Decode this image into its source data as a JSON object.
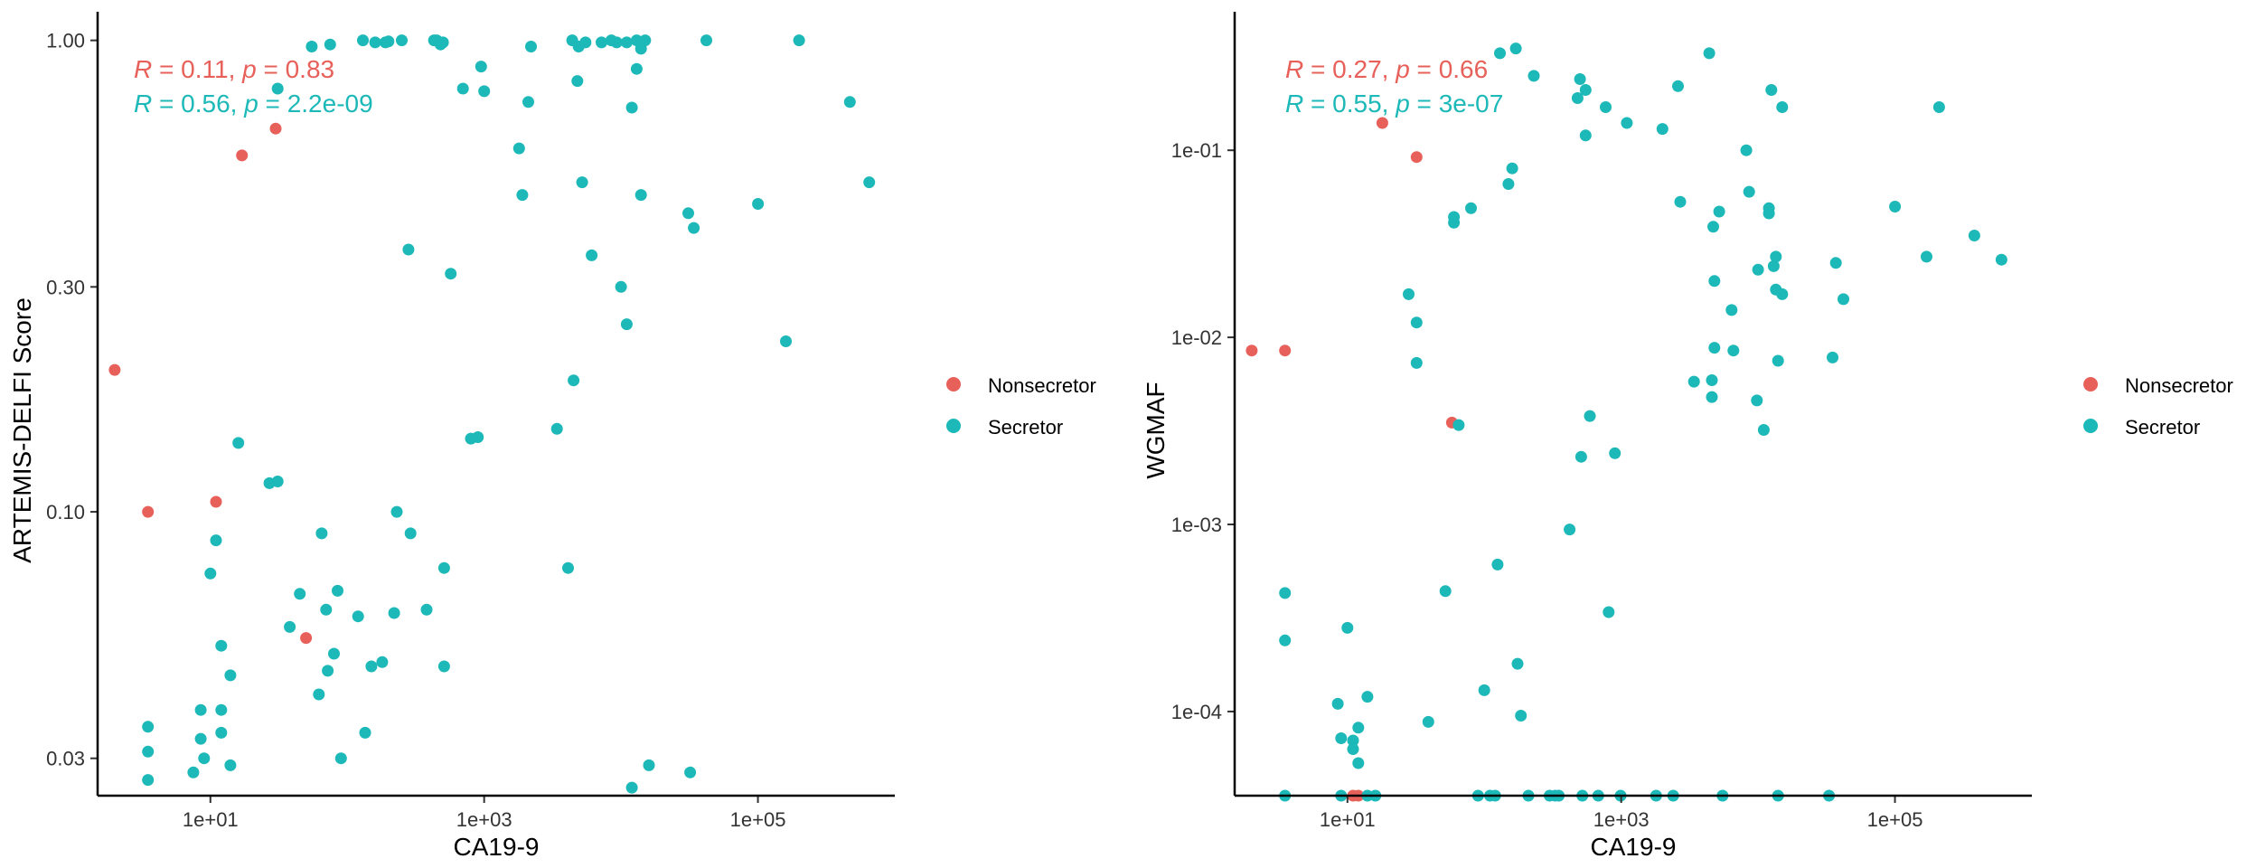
{
  "colors": {
    "nonsecretor": "#E8605A",
    "secretor": "#1DB8B8",
    "axis": "#000000",
    "tick_label": "#333333"
  },
  "legend": {
    "items": [
      "Nonsecretor",
      "Secretor"
    ]
  },
  "chart_data": [
    {
      "type": "scatter",
      "xlabel": "CA19-9",
      "ylabel": "ARTEMIS-DELFI Score",
      "x_scale": "log10",
      "y_scale": "log10",
      "xlim": [
        1.5,
        1000000
      ],
      "ylim": [
        0.025,
        1.15
      ],
      "x_ticks": [
        {
          "value": 10,
          "label": "1e+01"
        },
        {
          "value": 1000,
          "label": "1e+03"
        },
        {
          "value": 100000,
          "label": "1e+05"
        }
      ],
      "y_ticks": [
        {
          "value": 0.03,
          "label": "0.03"
        },
        {
          "value": 0.1,
          "label": "0.10"
        },
        {
          "value": 0.3,
          "label": "0.30"
        },
        {
          "value": 1.0,
          "label": "1.00"
        }
      ],
      "grid": false,
      "legend_position": "right",
      "annotations": [
        {
          "series": "Nonsecretor",
          "parts": [
            [
              "R",
              true
            ],
            [
              " = 0.11, ",
              false
            ],
            [
              "p",
              true
            ],
            [
              " = 0.83",
              false
            ]
          ]
        },
        {
          "series": "Secretor",
          "parts": [
            [
              "R",
              true
            ],
            [
              " = 0.56, ",
              false
            ],
            [
              "p",
              true
            ],
            [
              " = 2.2e-09",
              false
            ]
          ]
        }
      ],
      "series": [
        {
          "name": "Nonsecretor",
          "points": [
            [
              2,
              0.2
            ],
            [
              3.5,
              0.1
            ],
            [
              11,
              0.105
            ],
            [
              17,
              0.57
            ],
            [
              30,
              0.65
            ],
            [
              50,
              0.054
            ]
          ]
        },
        {
          "name": "Secretor",
          "points": [
            [
              3.5,
              0.035
            ],
            [
              3.5,
              0.031
            ],
            [
              3.5,
              0.027
            ],
            [
              7.5,
              0.028
            ],
            [
              8.5,
              0.038
            ],
            [
              8.5,
              0.033
            ],
            [
              9,
              0.03
            ],
            [
              10,
              0.074
            ],
            [
              11,
              0.087
            ],
            [
              12,
              0.038
            ],
            [
              12,
              0.034
            ],
            [
              12,
              0.052
            ],
            [
              14,
              0.029
            ],
            [
              14,
              0.045
            ],
            [
              16,
              0.14
            ],
            [
              27,
              0.115
            ],
            [
              31,
              0.116
            ],
            [
              31,
              0.79
            ],
            [
              38,
              0.057
            ],
            [
              45,
              0.067
            ],
            [
              55,
              0.97
            ],
            [
              62,
              0.041
            ],
            [
              65,
              0.09
            ],
            [
              70,
              0.062
            ],
            [
              72,
              0.046
            ],
            [
              75,
              0.98
            ],
            [
              80,
              0.05
            ],
            [
              85,
              0.068
            ],
            [
              90,
              0.03
            ],
            [
              120,
              0.06
            ],
            [
              130,
              1.0
            ],
            [
              135,
              0.034
            ],
            [
              150,
              0.047
            ],
            [
              160,
              0.99
            ],
            [
              180,
              0.048
            ],
            [
              190,
              0.99
            ],
            [
              200,
              0.995
            ],
            [
              220,
              0.061
            ],
            [
              230,
              0.1
            ],
            [
              250,
              1.0
            ],
            [
              280,
              0.36
            ],
            [
              290,
              0.09
            ],
            [
              380,
              0.062
            ],
            [
              430,
              1.0
            ],
            [
              450,
              1.0
            ],
            [
              480,
              0.98
            ],
            [
              510,
              0.076
            ],
            [
              500,
              0.99
            ],
            [
              510,
              0.047
            ],
            [
              570,
              0.32
            ],
            [
              700,
              0.79
            ],
            [
              800,
              0.143
            ],
            [
              900,
              0.144
            ],
            [
              950,
              0.88
            ],
            [
              1000,
              0.78
            ],
            [
              1800,
              0.59
            ],
            [
              1900,
              0.47
            ],
            [
              2100,
              0.74
            ],
            [
              2200,
              0.97
            ],
            [
              3400,
              0.15
            ],
            [
              4100,
              0.076
            ],
            [
              4400,
              1.0
            ],
            [
              4500,
              0.19
            ],
            [
              4800,
              0.82
            ],
            [
              4900,
              0.97
            ],
            [
              5200,
              0.5
            ],
            [
              5500,
              0.99
            ],
            [
              6100,
              0.35
            ],
            [
              7200,
              0.99
            ],
            [
              8500,
              1.0
            ],
            [
              9300,
              0.99
            ],
            [
              10000,
              0.3
            ],
            [
              11000,
              0.25
            ],
            [
              11000,
              0.99
            ],
            [
              12000,
              0.72
            ],
            [
              13000,
              0.87
            ],
            [
              13000,
              1.0
            ],
            [
              14000,
              0.47
            ],
            [
              14000,
              0.96
            ],
            [
              15000,
              1.0
            ],
            [
              16000,
              0.029
            ],
            [
              12000,
              0.026
            ],
            [
              31000,
              0.43
            ],
            [
              32000,
              0.028
            ],
            [
              34000,
              0.4
            ],
            [
              42000,
              1.0
            ],
            [
              100000,
              0.45
            ],
            [
              160000,
              0.23
            ],
            [
              200000,
              1.0
            ],
            [
              470000,
              0.74
            ],
            [
              650000,
              0.5
            ]
          ]
        }
      ]
    },
    {
      "type": "scatter",
      "xlabel": "CA19-9",
      "ylabel": "WGMAF",
      "x_scale": "log10",
      "y_scale": "log10",
      "xlim": [
        1.5,
        1000000
      ],
      "ylim": [
        3.55e-05,
        0.55
      ],
      "x_ticks": [
        {
          "value": 10,
          "label": "1e+01"
        },
        {
          "value": 1000,
          "label": "1e+03"
        },
        {
          "value": 100000,
          "label": "1e+05"
        }
      ],
      "y_ticks": [
        {
          "value": 0.0001,
          "label": "1e-04"
        },
        {
          "value": 0.001,
          "label": "1e-03"
        },
        {
          "value": 0.01,
          "label": "1e-02"
        },
        {
          "value": 0.1,
          "label": "1e-01"
        }
      ],
      "grid": false,
      "legend_position": "right",
      "annotations": [
        {
          "series": "Nonsecretor",
          "parts": [
            [
              "R",
              true
            ],
            [
              " = 0.27, ",
              false
            ],
            [
              "p",
              true
            ],
            [
              " = 0.66",
              false
            ]
          ]
        },
        {
          "series": "Secretor",
          "parts": [
            [
              "R",
              true
            ],
            [
              " = 0.55, ",
              false
            ],
            [
              "p",
              true
            ],
            [
              " = 3e-07",
              false
            ]
          ]
        }
      ],
      "series": [
        {
          "name": "Nonsecretor",
          "points": [
            [
              2,
              0.0085
            ],
            [
              3.5,
              0.0085
            ],
            [
              11,
              3.55e-05
            ],
            [
              12,
              3.55e-05
            ],
            [
              18,
              0.14
            ],
            [
              32,
              0.092
            ],
            [
              58,
              0.0035
            ]
          ]
        },
        {
          "name": "Secretor",
          "points": [
            [
              3.5,
              0.00043
            ],
            [
              3.5,
              0.00024
            ],
            [
              3.5,
              3.55e-05
            ],
            [
              8.5,
              0.00011
            ],
            [
              9,
              7.2e-05
            ],
            [
              9,
              3.55e-05
            ],
            [
              10,
              0.00028
            ],
            [
              11,
              7e-05
            ],
            [
              11,
              6.3e-05
            ],
            [
              12,
              8.2e-05
            ],
            [
              12,
              5.3e-05
            ],
            [
              14,
              0.00012
            ],
            [
              14,
              3.55e-05
            ],
            [
              16,
              3.55e-05
            ],
            [
              28,
              0.017
            ],
            [
              32,
              0.012
            ],
            [
              32,
              0.0073
            ],
            [
              39,
              8.8e-05
            ],
            [
              52,
              0.00044
            ],
            [
              60,
              0.041
            ],
            [
              60,
              0.044
            ],
            [
              65,
              0.0034
            ],
            [
              80,
              0.049
            ],
            [
              90,
              3.55e-05
            ],
            [
              100,
              0.00013
            ],
            [
              110,
              3.55e-05
            ],
            [
              120,
              3.55e-05
            ],
            [
              125,
              0.00061
            ],
            [
              130,
              0.33
            ],
            [
              150,
              0.066
            ],
            [
              160,
              0.08
            ],
            [
              170,
              0.35
            ],
            [
              175,
              0.00018
            ],
            [
              185,
              9.5e-05
            ],
            [
              210,
              3.55e-05
            ],
            [
              230,
              0.25
            ],
            [
              300,
              3.55e-05
            ],
            [
              330,
              3.55e-05
            ],
            [
              350,
              3.55e-05
            ],
            [
              420,
              0.00094
            ],
            [
              480,
              0.19
            ],
            [
              500,
              0.24
            ],
            [
              510,
              0.0023
            ],
            [
              520,
              3.55e-05
            ],
            [
              550,
              0.21
            ],
            [
              550,
              0.12
            ],
            [
              590,
              0.0038
            ],
            [
              680,
              3.55e-05
            ],
            [
              770,
              0.17
            ],
            [
              810,
              0.00034
            ],
            [
              900,
              0.0024
            ],
            [
              990,
              3.55e-05
            ],
            [
              1100,
              0.14
            ],
            [
              1800,
              3.55e-05
            ],
            [
              2000,
              0.13
            ],
            [
              2400,
              3.55e-05
            ],
            [
              2600,
              0.22
            ],
            [
              2700,
              0.053
            ],
            [
              3400,
              0.0058
            ],
            [
              4400,
              0.33
            ],
            [
              4600,
              0.0048
            ],
            [
              4600,
              0.0059
            ],
            [
              4700,
              0.039
            ],
            [
              4800,
              0.02
            ],
            [
              4800,
              0.0088
            ],
            [
              5200,
              0.047
            ],
            [
              5500,
              3.55e-05
            ],
            [
              6400,
              0.014
            ],
            [
              6600,
              0.0085
            ],
            [
              8200,
              0.1
            ],
            [
              8600,
              0.06
            ],
            [
              9800,
              0.0046
            ],
            [
              10000,
              0.023
            ],
            [
              11000,
              0.0032
            ],
            [
              12000,
              0.049
            ],
            [
              12000,
              0.046
            ],
            [
              12500,
              0.21
            ],
            [
              13000,
              0.024
            ],
            [
              13500,
              0.027
            ],
            [
              13500,
              0.018
            ],
            [
              14000,
              0.0075
            ],
            [
              14000,
              3.55e-05
            ],
            [
              15000,
              0.017
            ],
            [
              15000,
              0.17
            ],
            [
              33000,
              3.55e-05
            ],
            [
              35000,
              0.0078
            ],
            [
              37000,
              0.025
            ],
            [
              42000,
              0.016
            ],
            [
              100000,
              0.05
            ],
            [
              170000,
              0.027
            ],
            [
              210000,
              0.17
            ],
            [
              380000,
              0.035
            ],
            [
              600000,
              0.026
            ]
          ]
        }
      ]
    }
  ]
}
